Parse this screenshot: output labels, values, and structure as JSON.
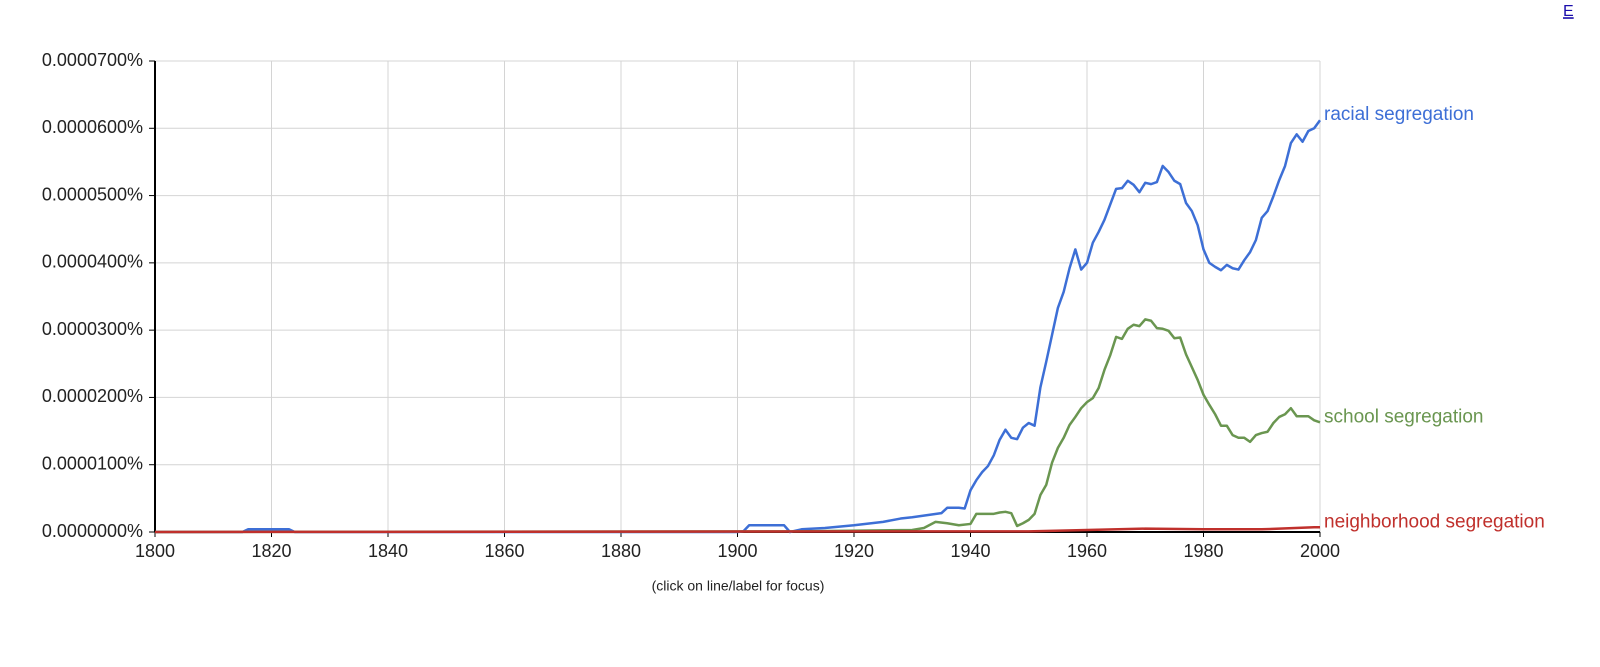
{
  "chart_data": {
    "type": "line",
    "note": "(click on line/label for focus)",
    "corner_link": "E",
    "xlim": [
      1800,
      2000
    ],
    "xticks": [
      1800,
      1820,
      1840,
      1860,
      1880,
      1900,
      1920,
      1940,
      1960,
      1980,
      2000
    ],
    "ylim": [
      0,
      7e-05
    ],
    "yticks": [
      {
        "value": 0,
        "label": "0.0000000%"
      },
      {
        "value": 1e-05,
        "label": "0.0000100%"
      },
      {
        "value": 2e-05,
        "label": "0.0000200%"
      },
      {
        "value": 3e-05,
        "label": "0.0000300%"
      },
      {
        "value": 4e-05,
        "label": "0.0000400%"
      },
      {
        "value": 5e-05,
        "label": "0.0000500%"
      },
      {
        "value": 6e-05,
        "label": "0.0000600%"
      },
      {
        "value": 7e-05,
        "label": "0.0000700%"
      }
    ],
    "grid": true,
    "series": [
      {
        "name": "racial segregation",
        "color": "#3d6fd6",
        "x": [
          1800,
          1815,
          1816,
          1823,
          1824,
          1900,
          1901,
          1902,
          1908,
          1909,
          1911,
          1915,
          1920,
          1925,
          1928,
          1930,
          1935,
          1936,
          1938,
          1939,
          1940,
          1941,
          1942,
          1943,
          1944,
          1945,
          1946,
          1947,
          1948,
          1949,
          1950,
          1951,
          1952,
          1953,
          1954,
          1955,
          1956,
          1957,
          1958,
          1959,
          1960,
          1961,
          1962,
          1963,
          1964,
          1965,
          1966,
          1967,
          1968,
          1969,
          1970,
          1971,
          1972,
          1973,
          1974,
          1975,
          1976,
          1977,
          1978,
          1979,
          1980,
          1981,
          1982,
          1983,
          1984,
          1985,
          1986,
          1987,
          1988,
          1989,
          1990,
          1991,
          1992,
          1993,
          1994,
          1995,
          1996,
          1997,
          1998,
          1999,
          2000
        ],
        "values": [
          0,
          0,
          4e-07,
          4e-07,
          0,
          0,
          1e-07,
          1e-06,
          1e-06,
          0,
          4e-07,
          6e-07,
          1e-06,
          1.5e-06,
          2e-06,
          2.2e-06,
          2.8e-06,
          3.6e-06,
          3.6e-06,
          3.5e-06,
          6.2e-06,
          7.7e-06,
          8.9e-06,
          9.8e-06,
          1.14e-05,
          1.37e-05,
          1.52e-05,
          1.4e-05,
          1.38e-05,
          1.55e-05,
          1.62e-05,
          1.58e-05,
          2.15e-05,
          2.53e-05,
          2.93e-05,
          3.33e-05,
          3.57e-05,
          3.92e-05,
          4.2e-05,
          3.9e-05,
          4e-05,
          4.3e-05,
          4.46e-05,
          4.64e-05,
          4.87e-05,
          5.1e-05,
          5.11e-05,
          5.22e-05,
          5.16e-05,
          5.05e-05,
          5.19e-05,
          5.17e-05,
          5.2e-05,
          5.44e-05,
          5.35e-05,
          5.22e-05,
          5.17e-05,
          4.89e-05,
          4.77e-05,
          4.56e-05,
          4.2e-05,
          4e-05,
          3.94e-05,
          3.89e-05,
          3.97e-05,
          3.92e-05,
          3.9e-05,
          4.04e-05,
          4.16e-05,
          4.34e-05,
          4.67e-05,
          4.77e-05,
          4.99e-05,
          5.23e-05,
          5.44e-05,
          5.78e-05,
          5.91e-05,
          5.8e-05,
          5.96e-05,
          6e-05,
          6.12e-05
        ]
      },
      {
        "name": "school segregation",
        "color": "#6a9650",
        "x": [
          1800,
          1910,
          1930,
          1932,
          1934,
          1936,
          1938,
          1940,
          1941,
          1942,
          1943,
          1944,
          1945,
          1946,
          1947,
          1948,
          1949,
          1950,
          1951,
          1952,
          1953,
          1954,
          1955,
          1956,
          1957,
          1958,
          1959,
          1960,
          1961,
          1962,
          1963,
          1964,
          1965,
          1966,
          1967,
          1968,
          1969,
          1970,
          1971,
          1972,
          1973,
          1974,
          1975,
          1976,
          1977,
          1978,
          1979,
          1980,
          1981,
          1982,
          1983,
          1984,
          1985,
          1986,
          1987,
          1988,
          1989,
          1990,
          1991,
          1992,
          1993,
          1994,
          1995,
          1996,
          1997,
          1998,
          1999,
          2000
        ],
        "values": [
          0,
          1e-07,
          3e-07,
          6e-07,
          1.5e-06,
          1.3e-06,
          1e-06,
          1.2e-06,
          2.7e-06,
          2.7e-06,
          2.7e-06,
          2.7e-06,
          2.9e-06,
          3e-06,
          2.8e-06,
          9e-07,
          1.3e-06,
          1.8e-06,
          2.7e-06,
          5.5e-06,
          7e-06,
          1.03e-05,
          1.25e-05,
          1.4e-05,
          1.59e-05,
          1.71e-05,
          1.84e-05,
          1.93e-05,
          1.99e-05,
          2.14e-05,
          2.41e-05,
          2.63e-05,
          2.9e-05,
          2.87e-05,
          3.02e-05,
          3.08e-05,
          3.06e-05,
          3.16e-05,
          3.14e-05,
          3.03e-05,
          3.02e-05,
          2.99e-05,
          2.88e-05,
          2.89e-05,
          2.64e-05,
          2.45e-05,
          2.26e-05,
          2.04e-05,
          1.89e-05,
          1.75e-05,
          1.58e-05,
          1.58e-05,
          1.44e-05,
          1.4e-05,
          1.4e-05,
          1.34e-05,
          1.44e-05,
          1.47e-05,
          1.49e-05,
          1.62e-05,
          1.71e-05,
          1.75e-05,
          1.84e-05,
          1.72e-05,
          1.72e-05,
          1.72e-05,
          1.66e-05,
          1.63e-05
        ]
      },
      {
        "name": "neighborhood segregation",
        "color": "#c0302c",
        "x": [
          1800,
          1950,
          1960,
          1970,
          1980,
          1990,
          1999,
          2000
        ],
        "values": [
          0,
          1e-07,
          3e-07,
          5e-07,
          4e-07,
          4e-07,
          7e-07,
          7e-07
        ]
      }
    ]
  }
}
